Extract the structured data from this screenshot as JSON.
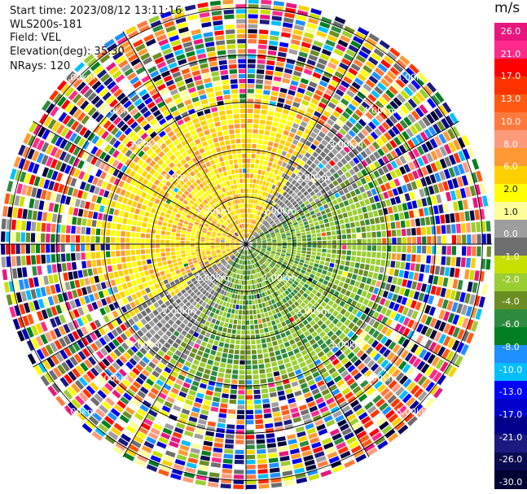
{
  "info": {
    "start_time": "Start time: 2023/08/12 13:11:16",
    "instrument": "WLS200s-181",
    "field": "Field: VEL",
    "elevation": "Elevation(deg): 35.30",
    "nrays": "NRays: 120"
  },
  "colorbar": {
    "unit": "m/s",
    "colors": [
      "#e8177e",
      "#ff2a8a",
      "#ff0000",
      "#ff3300",
      "#ff5a14",
      "#ff7a3c",
      "#ff9a7a",
      "#ff9933",
      "#ffd000",
      "#ffff00",
      "#ffff99",
      "#9e9e9e",
      "#6e6e6e",
      "#c8e000",
      "#9acd32",
      "#6b8e23",
      "#2e8b3e",
      "#008020",
      "#1e90ff",
      "#00bfff",
      "#0000ff",
      "#0000cc",
      "#00008b",
      "#1a1a80",
      "#0a0a50",
      "#000033"
    ],
    "labels": [
      "26.0",
      "21.0",
      "17.0",
      "13.0",
      "10.0",
      "8.0",
      "6.0",
      "2.0",
      "1.0",
      "0.0",
      "-1.0",
      "-2.0",
      "-4.0",
      "-6.0",
      "-8.0",
      "-10.0",
      "-13.0",
      "-17.0",
      "-21.0",
      "-26.0",
      "-30.0"
    ]
  },
  "ring_labels": [
    "1.00km",
    "2.00km",
    "3.00km",
    "4.00km",
    "5.00km"
  ],
  "chart_data": {
    "type": "heatmap",
    "projection": "polar PPI (plan position indicator)",
    "field": "VEL",
    "units": "m/s",
    "n_rays": 120,
    "elevation_deg": 35.3,
    "range_rings_km": [
      1,
      2,
      3,
      4,
      5
    ],
    "value_range": [
      -30,
      26
    ],
    "colorbar_ticks": [
      26,
      21,
      17,
      13,
      10,
      8,
      6,
      2,
      1,
      0,
      -1,
      -2,
      -4,
      -6,
      -8,
      -10,
      -13,
      -17,
      -21,
      -26,
      -30
    ],
    "pattern": {
      "inner_km": [
        0,
        1.5
      ],
      "near_field": "north-west half positive ~1-6 m/s (yellow/orange), south-east half negative ~-2 to -6 m/s (green)",
      "mid_km": [
        1.5,
        3.2
      ],
      "mid_field": "mostly positive 1-2 m/s toward north-west, negative -2 to -4 m/s toward south-east, near-zero band along south-west/north-east diagonal",
      "outer_km": [
        3.2,
        5.0
      ],
      "outer_field": "noisy, random values spanning full color range"
    }
  }
}
